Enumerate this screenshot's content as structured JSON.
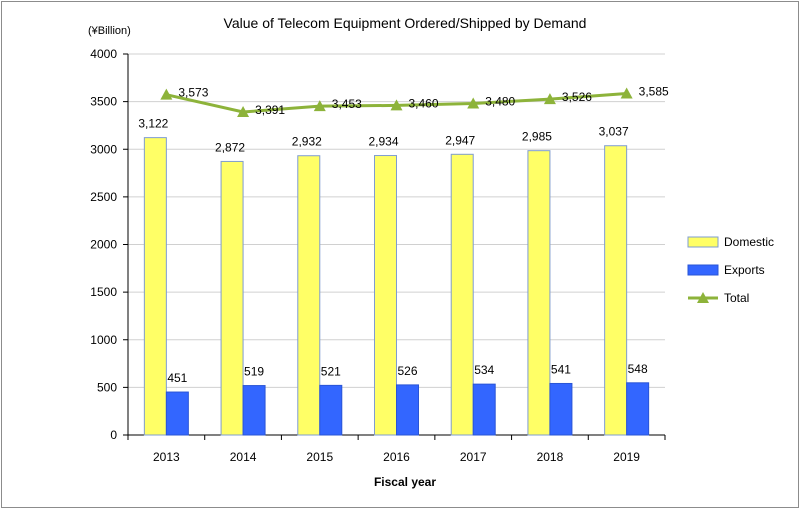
{
  "chart_data": {
    "type": "bar",
    "title": "Value of  Telecom Equipment Ordered/Shipped by Demand",
    "unit_label": "(¥Billion)",
    "xlabel": "Fiscal year",
    "ylabel": "",
    "ylim": [
      0,
      4000
    ],
    "yticks": [
      0,
      500,
      1000,
      1500,
      2000,
      2500,
      3000,
      3500,
      4000
    ],
    "grid": true,
    "legend_position": "right",
    "categories": [
      "2013",
      "2014",
      "2015",
      "2016",
      "2017",
      "2018",
      "2019"
    ],
    "series": [
      {
        "name": "Domestic",
        "type": "bar",
        "color": "#ffff66",
        "values": [
          3122,
          2872,
          2932,
          2934,
          2947,
          2985,
          3037
        ],
        "labels": [
          "3,122",
          "2,872",
          "2,932",
          "2,934",
          "2,947",
          "2,985",
          "3,037"
        ]
      },
      {
        "name": "Exports",
        "type": "bar",
        "color": "#3366ff",
        "values": [
          451,
          519,
          521,
          526,
          534,
          541,
          548
        ],
        "labels": [
          "451",
          "519",
          "521",
          "526",
          "534",
          "541",
          "548"
        ]
      },
      {
        "name": "Total",
        "type": "line",
        "color": "#8db33a",
        "values": [
          3573,
          3391,
          3453,
          3460,
          3480,
          3526,
          3585
        ],
        "labels": [
          "3,573",
          "3,391",
          "3,453",
          "3,460",
          "3,480",
          "3,526",
          "3,585"
        ]
      }
    ]
  }
}
